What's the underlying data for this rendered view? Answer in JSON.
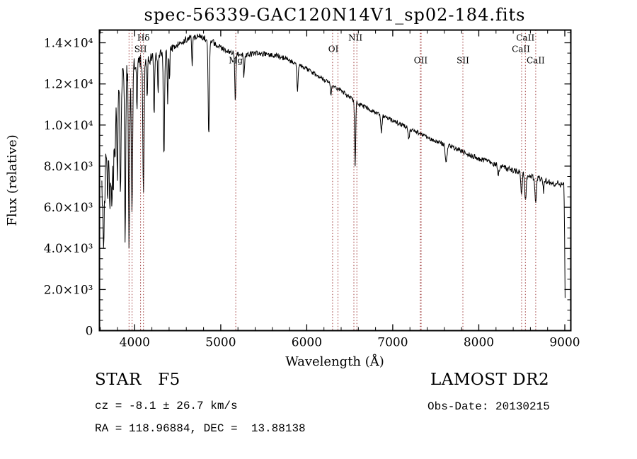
{
  "footer": {
    "class_label": "STAR   F5",
    "survey": "LAMOST DR2",
    "cz": "cz = -8.1 ± 26.7 km/s",
    "obs_date": "Obs-Date: 20130215",
    "ra_dec": "RA = 118.96884, DEC =  13.88138"
  },
  "chart_data": {
    "type": "line",
    "title": "spec-56339-GAC120N14V1_sp02-184.fits",
    "xlabel": "Wavelength (Å)",
    "ylabel": "Flux (relative)",
    "xlim": [
      3590,
      9070
    ],
    "ylim": [
      0,
      14620
    ],
    "grid": false,
    "xticks": [
      4000,
      5000,
      6000,
      7000,
      8000,
      9000
    ],
    "xtick_labels": [
      "4000",
      "5000",
      "6000",
      "7000",
      "8000",
      "9000"
    ],
    "yticks": [
      0,
      2000,
      4000,
      6000,
      8000,
      10000,
      12000,
      14000
    ],
    "ytick_labels": [
      "0",
      "2.0×10³",
      "4.0×10³",
      "6.0×10³",
      "8.0×10³",
      "1.0×10⁴",
      "1.2×10⁴",
      "1.4×10⁴"
    ],
    "x_minor_step": 200,
    "y_minor_step": 500,
    "line_color": "#000000",
    "marker_line_color": "#9e3a3a",
    "marker_lines": [
      3934,
      3969,
      4068,
      4102,
      5175,
      6300,
      6363,
      6548,
      6583,
      7320,
      7330,
      7815,
      8498,
      8542,
      8662
    ],
    "annotations": [
      {
        "text": "Hδ",
        "x": 4102,
        "row": 0
      },
      {
        "text": "SII",
        "x": 4068,
        "row": 1
      },
      {
        "text": "Mg",
        "x": 5175,
        "row": 2,
        "color": "#909090"
      },
      {
        "text": "OI",
        "x": 6310,
        "row": 1
      },
      {
        "text": "NII",
        "x": 6565,
        "row": 0
      },
      {
        "text": "OII",
        "x": 7325,
        "row": 2
      },
      {
        "text": "SII",
        "x": 7815,
        "row": 2
      },
      {
        "text": "CaII",
        "x": 8542,
        "row": 0
      },
      {
        "text": "CaII",
        "x": 8490,
        "row": 1
      },
      {
        "text": "CaII",
        "x": 8662,
        "row": 2
      }
    ],
    "spectrum": {
      "range": [
        3618,
        9003
      ],
      "step": 5,
      "seed": 20130215,
      "continuum": [
        [
          3618,
          6800
        ],
        [
          3650,
          8600
        ],
        [
          3690,
          9600
        ],
        [
          3730,
          10400
        ],
        [
          3770,
          11000
        ],
        [
          3810,
          11900
        ],
        [
          3860,
          12450
        ],
        [
          3910,
          12600
        ],
        [
          3960,
          12750
        ],
        [
          4010,
          12950
        ],
        [
          4060,
          13100
        ],
        [
          4110,
          13200
        ],
        [
          4160,
          13150
        ],
        [
          4210,
          13320
        ],
        [
          4260,
          13420
        ],
        [
          4310,
          13520
        ],
        [
          4360,
          13620
        ],
        [
          4410,
          13700
        ],
        [
          4460,
          13800
        ],
        [
          4510,
          13900
        ],
        [
          4560,
          14050
        ],
        [
          4610,
          14200
        ],
        [
          4660,
          14300
        ],
        [
          4710,
          14260
        ],
        [
          4760,
          14300
        ],
        [
          4810,
          14220
        ],
        [
          4860,
          14120
        ],
        [
          4910,
          14020
        ],
        [
          4960,
          13900
        ],
        [
          5010,
          13720
        ],
        [
          5060,
          13620
        ],
        [
          5110,
          13530
        ],
        [
          5160,
          13470
        ],
        [
          5210,
          13420
        ],
        [
          5310,
          13410
        ],
        [
          5410,
          13500
        ],
        [
          5510,
          13460
        ],
        [
          5610,
          13400
        ],
        [
          5710,
          13300
        ],
        [
          5810,
          13120
        ],
        [
          5910,
          12920
        ],
        [
          6010,
          12700
        ],
        [
          6110,
          12450
        ],
        [
          6210,
          12200
        ],
        [
          6310,
          11920
        ],
        [
          6410,
          11640
        ],
        [
          6510,
          11320
        ],
        [
          6610,
          11000
        ],
        [
          6710,
          10800
        ],
        [
          6810,
          10600
        ],
        [
          6910,
          10400
        ],
        [
          7010,
          10200
        ],
        [
          7110,
          10000
        ],
        [
          7210,
          9800
        ],
        [
          7310,
          9600
        ],
        [
          7410,
          9400
        ],
        [
          7510,
          9210
        ],
        [
          7610,
          9060
        ],
        [
          7710,
          8900
        ],
        [
          7810,
          8710
        ],
        [
          7910,
          8520
        ],
        [
          8010,
          8360
        ],
        [
          8110,
          8210
        ],
        [
          8210,
          8060
        ],
        [
          8310,
          7910
        ],
        [
          8410,
          7760
        ],
        [
          8510,
          7650
        ],
        [
          8610,
          7500
        ],
        [
          8710,
          7360
        ],
        [
          8810,
          7250
        ],
        [
          8910,
          7150
        ],
        [
          8960,
          7100
        ],
        [
          8990,
          7020
        ],
        [
          8997,
          5500
        ],
        [
          9002,
          1800
        ],
        [
          9006,
          1500
        ]
      ],
      "absorption_lines": [
        {
          "x": 3640,
          "depth": 3800,
          "sigma": 10
        },
        {
          "x": 3685,
          "depth": 3200,
          "sigma": 8
        },
        {
          "x": 3712,
          "depth": 4300,
          "sigma": 7
        },
        {
          "x": 3734,
          "depth": 4600,
          "sigma": 7
        },
        {
          "x": 3752,
          "depth": 3600,
          "sigma": 6
        },
        {
          "x": 3771,
          "depth": 3400,
          "sigma": 6
        },
        {
          "x": 3798,
          "depth": 4100,
          "sigma": 7
        },
        {
          "x": 3835,
          "depth": 5200,
          "sigma": 7
        },
        {
          "x": 3889,
          "depth": 8800,
          "sigma": 6
        },
        {
          "x": 3934,
          "depth": 8300,
          "sigma": 7
        },
        {
          "x": 3969,
          "depth": 7200,
          "sigma": 7
        },
        {
          "x": 4026,
          "depth": 2300,
          "sigma": 5
        },
        {
          "x": 4102,
          "depth": 6400,
          "sigma": 7
        },
        {
          "x": 4144,
          "depth": 1900,
          "sigma": 5
        },
        {
          "x": 4226,
          "depth": 3200,
          "sigma": 5
        },
        {
          "x": 4271,
          "depth": 2000,
          "sigma": 5
        },
        {
          "x": 4340,
          "depth": 5100,
          "sigma": 7
        },
        {
          "x": 4383,
          "depth": 2600,
          "sigma": 5
        },
        {
          "x": 4405,
          "depth": 1800,
          "sigma": 4
        },
        {
          "x": 4668,
          "depth": 1300,
          "sigma": 5
        },
        {
          "x": 4861,
          "depth": 4600,
          "sigma": 7
        },
        {
          "x": 5170,
          "depth": 2300,
          "sigma": 6
        },
        {
          "x": 5270,
          "depth": 1100,
          "sigma": 6
        },
        {
          "x": 5893,
          "depth": 1300,
          "sigma": 7
        },
        {
          "x": 6280,
          "depth": 500,
          "sigma": 6
        },
        {
          "x": 6563,
          "depth": 3100,
          "sigma": 6
        },
        {
          "x": 6867,
          "depth": 800,
          "sigma": 8
        },
        {
          "x": 7186,
          "depth": 500,
          "sigma": 8
        },
        {
          "x": 7620,
          "depth": 950,
          "sigma": 10
        },
        {
          "x": 8228,
          "depth": 450,
          "sigma": 8
        },
        {
          "x": 8498,
          "depth": 1100,
          "sigma": 7
        },
        {
          "x": 8542,
          "depth": 1350,
          "sigma": 8
        },
        {
          "x": 8662,
          "depth": 1250,
          "sigma": 8
        },
        {
          "x": 8752,
          "depth": 500,
          "sigma": 6
        }
      ],
      "noise": [
        [
          3618,
          900
        ],
        [
          3800,
          820
        ],
        [
          3950,
          420
        ],
        [
          4150,
          260
        ],
        [
          4400,
          190
        ],
        [
          5000,
          140
        ],
        [
          6000,
          115
        ],
        [
          7000,
          100
        ],
        [
          7600,
          110
        ],
        [
          8000,
          125
        ],
        [
          8800,
          170
        ],
        [
          9003,
          180
        ]
      ]
    }
  }
}
